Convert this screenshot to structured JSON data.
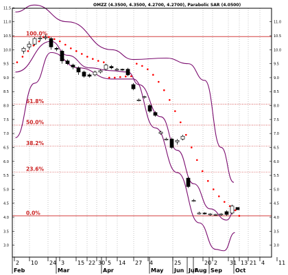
{
  "chart_data": {
    "type": "candlestick",
    "title": "OMZZ (4.3500, 4.3500, 4.2700, 4.2700), Parabolic SAR (4.0500)",
    "x_ticks": [
      "2",
      "10",
      "24",
      "3",
      "15",
      "22",
      "30",
      "5",
      "14",
      "27",
      "4",
      "25",
      "20",
      "2",
      "31",
      "13",
      "21",
      "4",
      "11"
    ],
    "months": [
      "Feb",
      "Mar",
      "Apr",
      "May",
      "Jun",
      "Jul",
      "Aug",
      "Sep",
      "Oct"
    ],
    "y_ticks_left": [
      "11.5",
      "11.0",
      "10.5",
      "10.0",
      "9.5",
      "9.0",
      "8.5",
      "8.0",
      "7.5",
      "7.0",
      "6.5",
      "6.0",
      "5.5",
      "5.0",
      "4.5",
      "4.0",
      "3.5",
      "3.0"
    ],
    "y_ticks_right": [
      "11.0",
      "10.5",
      "10.0",
      "9.5",
      "9.0",
      "8.5",
      "8.0",
      "7.5",
      "7.0",
      "6.5",
      "6.0",
      "5.5",
      "5.0",
      "4.5",
      "4.0",
      "3.5",
      "3.0"
    ],
    "ylim": [
      2.6,
      11.9
    ],
    "colors": {
      "price": "#000000",
      "bands": "#7a0a6e",
      "sar": "#ff0000",
      "fib": "#cc2222",
      "grid": "#888888"
    },
    "fib_levels": [
      {
        "label": "100.0%",
        "value": 10.47
      },
      {
        "label": "61.8%",
        "value": 8.05
      },
      {
        "label": "50.0%",
        "value": 7.3
      },
      {
        "label": "38.2%",
        "value": 6.55
      },
      {
        "label": "23.6%",
        "value": 5.62
      },
      {
        "label": "0.0%",
        "value": 4.05
      }
    ],
    "candles": [
      {
        "i": 0,
        "o": 9.95,
        "h": 10.1,
        "l": 9.85,
        "c": 10.05
      },
      {
        "i": 1,
        "o": 10.1,
        "h": 10.3,
        "l": 10.0,
        "c": 10.2
      },
      {
        "i": 2,
        "o": 10.2,
        "h": 10.45,
        "l": 10.15,
        "c": 10.4
      },
      {
        "i": 3,
        "o": 10.4,
        "h": 10.5,
        "l": 10.3,
        "c": 10.42
      },
      {
        "i": 4,
        "o": 10.42,
        "h": 10.55,
        "l": 10.35,
        "c": 10.45
      },
      {
        "i": 5,
        "o": 10.4,
        "h": 10.45,
        "l": 10.0,
        "c": 10.1
      },
      {
        "i": 6,
        "o": 10.05,
        "h": 10.1,
        "l": 9.95,
        "c": 10.02
      },
      {
        "i": 7,
        "o": 9.95,
        "h": 10.0,
        "l": 9.5,
        "c": 9.6
      },
      {
        "i": 8,
        "o": 9.6,
        "h": 9.65,
        "l": 9.45,
        "c": 9.5
      },
      {
        "i": 9,
        "o": 9.45,
        "h": 9.5,
        "l": 9.3,
        "c": 9.38
      },
      {
        "i": 10,
        "o": 9.35,
        "h": 9.4,
        "l": 9.1,
        "c": 9.2
      },
      {
        "i": 11,
        "o": 9.2,
        "h": 9.25,
        "l": 9.0,
        "c": 9.05
      },
      {
        "i": 12,
        "o": 9.1,
        "h": 9.15,
        "l": 9.0,
        "c": 9.05
      },
      {
        "i": 13,
        "o": 9.1,
        "h": 9.25,
        "l": 9.05,
        "c": 9.2
      },
      {
        "i": 14,
        "o": 9.2,
        "h": 9.3,
        "l": 9.15,
        "c": 9.25
      },
      {
        "i": 15,
        "o": 9.3,
        "h": 9.5,
        "l": 9.25,
        "c": 9.45
      },
      {
        "i": 16,
        "o": 9.4,
        "h": 9.45,
        "l": 9.3,
        "c": 9.35
      },
      {
        "i": 17,
        "o": 9.3,
        "h": 9.35,
        "l": 9.25,
        "c": 9.3
      },
      {
        "i": 18,
        "o": 9.3,
        "h": 9.32,
        "l": 9.25,
        "c": 9.28
      },
      {
        "i": 19,
        "o": 9.3,
        "h": 9.35,
        "l": 9.05,
        "c": 9.1
      },
      {
        "i": 20,
        "o": 8.75,
        "h": 8.8,
        "l": 8.55,
        "c": 8.6
      },
      {
        "i": 21,
        "o": 8.2,
        "h": 8.25,
        "l": 8.15,
        "c": 8.2
      },
      {
        "i": 22,
        "o": 8.3,
        "h": 8.35,
        "l": 8.25,
        "c": 8.32
      },
      {
        "i": 23,
        "o": 8.0,
        "h": 8.05,
        "l": 7.75,
        "c": 7.8
      },
      {
        "i": 24,
        "o": 7.75,
        "h": 7.8,
        "l": 7.6,
        "c": 7.65
      },
      {
        "i": 25,
        "o": 7.0,
        "h": 7.1,
        "l": 6.95,
        "c": 7.05
      },
      {
        "i": 26,
        "o": 6.8,
        "h": 6.85,
        "l": 6.75,
        "c": 6.8
      },
      {
        "i": 27,
        "o": 6.8,
        "h": 6.85,
        "l": 6.45,
        "c": 6.5
      },
      {
        "i": 28,
        "o": 6.7,
        "h": 6.8,
        "l": 6.6,
        "c": 6.75
      },
      {
        "i": 29,
        "o": 6.8,
        "h": 6.95,
        "l": 6.75,
        "c": 6.9
      },
      {
        "i": 30,
        "o": 5.4,
        "h": 5.45,
        "l": 5.05,
        "c": 5.1
      },
      {
        "i": 31,
        "o": 4.6,
        "h": 4.65,
        "l": 4.55,
        "c": 4.6
      },
      {
        "i": 32,
        "o": 4.15,
        "h": 4.2,
        "l": 4.1,
        "c": 4.15
      },
      {
        "i": 33,
        "o": 4.15,
        "h": 4.18,
        "l": 4.1,
        "c": 4.12
      },
      {
        "i": 34,
        "o": 4.1,
        "h": 4.15,
        "l": 4.05,
        "c": 4.12
      },
      {
        "i": 35,
        "o": 4.1,
        "h": 4.12,
        "l": 4.05,
        "c": 4.1
      },
      {
        "i": 36,
        "o": 4.1,
        "h": 4.15,
        "l": 4.05,
        "c": 4.12
      },
      {
        "i": 37,
        "o": 4.2,
        "h": 4.25,
        "l": 4.05,
        "c": 4.1
      },
      {
        "i": 38,
        "o": 4.15,
        "h": 4.45,
        "l": 4.1,
        "c": 4.4
      },
      {
        "i": 39,
        "o": 4.35,
        "h": 4.35,
        "l": 4.27,
        "c": 4.27
      }
    ],
    "band_upper": [
      [
        -1.5,
        11.35
      ],
      [
        2,
        11.6
      ],
      [
        8,
        11.0
      ],
      [
        16,
        10.0
      ],
      [
        20,
        9.65
      ],
      [
        26,
        9.7
      ],
      [
        30,
        9.5
      ],
      [
        33,
        8.9
      ],
      [
        36,
        6.5
      ],
      [
        38.3,
        5.25
      ]
    ],
    "band_lower": [
      [
        -1.5,
        6.85
      ],
      [
        2,
        8.8
      ],
      [
        5,
        9.9
      ],
      [
        10,
        9.35
      ],
      [
        16,
        8.95
      ],
      [
        20,
        8.95
      ],
      [
        24,
        7.2
      ],
      [
        28,
        5.6
      ],
      [
        32,
        3.8
      ],
      [
        35,
        2.85
      ],
      [
        36.5,
        2.8
      ],
      [
        38.5,
        3.45
      ]
    ],
    "band_middle": [
      [
        -1.5,
        9.2
      ],
      [
        5,
        10.3
      ],
      [
        8,
        9.8
      ],
      [
        12,
        9.35
      ],
      [
        16,
        9.25
      ],
      [
        19,
        9.2
      ],
      [
        21,
        8.75
      ],
      [
        25,
        7.6
      ],
      [
        28,
        6.4
      ],
      [
        31,
        5.2
      ],
      [
        34,
        4.3
      ],
      [
        37,
        3.9
      ],
      [
        38.5,
        4.25
      ]
    ],
    "sar": [
      [
        -1.2,
        9.55
      ],
      [
        -0.2,
        9.75
      ],
      [
        0.8,
        9.95
      ],
      [
        1.8,
        10.15
      ],
      [
        2.8,
        10.3
      ],
      [
        3.6,
        10.45
      ],
      [
        4.6,
        10.45
      ],
      [
        5.6,
        10.38
      ],
      [
        6.6,
        10.3
      ],
      [
        7.6,
        10.18
      ],
      [
        8.6,
        10.05
      ],
      [
        9.6,
        9.95
      ],
      [
        10.6,
        9.85
      ],
      [
        11.6,
        9.75
      ],
      [
        12.6,
        9.67
      ],
      [
        13.6,
        9.6
      ],
      [
        14.6,
        9.55
      ],
      [
        15.6,
        9.0
      ],
      [
        16.6,
        9.0
      ],
      [
        17.6,
        9.02
      ],
      [
        18.6,
        9.04
      ],
      [
        19.6,
        9.05
      ],
      [
        20.6,
        9.5
      ],
      [
        21.6,
        9.42
      ],
      [
        22.6,
        9.3
      ],
      [
        23.6,
        9.1
      ],
      [
        24.6,
        8.85
      ],
      [
        25.6,
        8.55
      ],
      [
        26.6,
        8.2
      ],
      [
        27.6,
        7.8
      ],
      [
        28.6,
        7.4
      ],
      [
        29.6,
        6.95
      ],
      [
        30.6,
        6.5
      ],
      [
        31.6,
        6.05
      ],
      [
        32.6,
        5.65
      ],
      [
        33.6,
        5.3
      ],
      [
        34.6,
        5.0
      ],
      [
        35.6,
        4.75
      ],
      [
        36.6,
        4.55
      ],
      [
        37.6,
        4.4
      ],
      [
        38.6,
        4.25
      ],
      [
        39.3,
        4.05
      ]
    ]
  }
}
